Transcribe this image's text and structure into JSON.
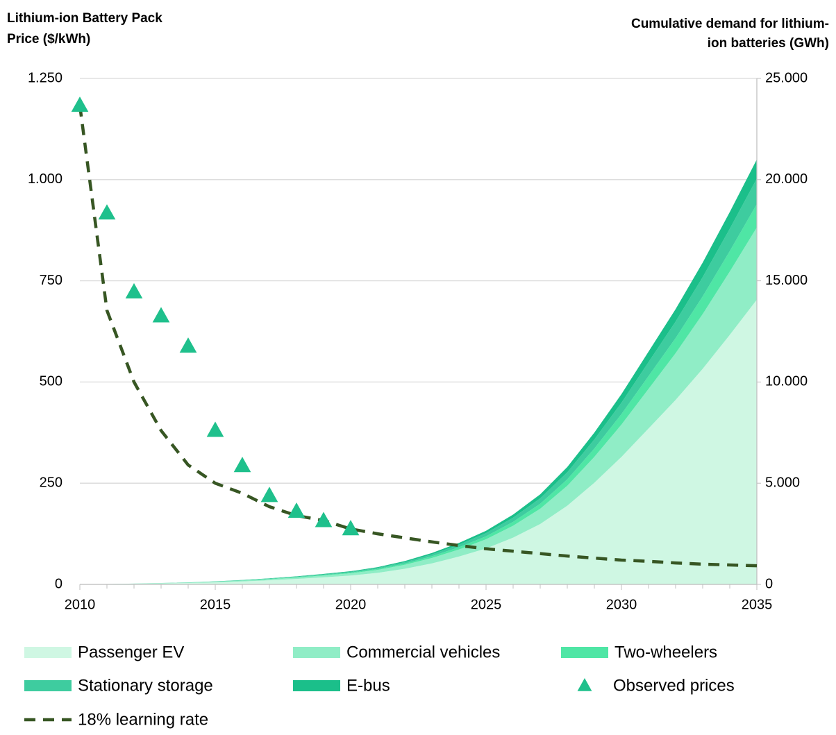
{
  "chart_data": {
    "type": "stacked-area-line",
    "ylabel": [
      "Lithium-ion Battery Pack",
      "Price ($/kWh)"
    ],
    "y2label": [
      "Cumulative demand for lithium-",
      "ion batteries (GWh)"
    ],
    "x": [
      2010,
      2011,
      2012,
      2013,
      2014,
      2015,
      2016,
      2017,
      2018,
      2019,
      2020,
      2021,
      2022,
      2023,
      2024,
      2025,
      2026,
      2027,
      2028,
      2029,
      2030,
      2031,
      2032,
      2033,
      2034,
      2035
    ],
    "xlim": [
      2010,
      2035
    ],
    "xticks": [
      2010,
      2015,
      2020,
      2025,
      2030,
      2035
    ],
    "ylim": [
      0,
      1250
    ],
    "yticks": [
      0,
      250,
      500,
      750,
      {
        "value": 1000,
        "label": "1.000"
      },
      {
        "value": 1250,
        "label": "1.250"
      }
    ],
    "y2lim": [
      0,
      25000
    ],
    "y2ticks": [
      0,
      {
        "value": 5000,
        "label": "5.000"
      },
      {
        "value": 10000,
        "label": "10.000"
      },
      {
        "value": 15000,
        "label": "15.000"
      },
      {
        "value": 20000,
        "label": "20.000"
      },
      {
        "value": 25000,
        "label": "25.000"
      }
    ],
    "grid": true,
    "legend": "bottom",
    "series": [
      {
        "name": "Passenger EV",
        "type": "area",
        "axis": "y2",
        "color": "#cff7e3",
        "values": [
          0,
          13,
          27,
          47,
          67,
          100,
          147,
          201,
          268,
          348,
          436,
          570,
          771,
          1039,
          1374,
          1776,
          2312,
          2982,
          3886,
          5025,
          6298,
          7705,
          9112,
          10653,
          12328,
          14070
        ]
      },
      {
        "name": "Commercial vehicles",
        "type": "area",
        "axis": "y2",
        "color": "#90edc6",
        "values": [
          0,
          3,
          7,
          12,
          17,
          26,
          37,
          51,
          68,
          88,
          111,
          145,
          196,
          264,
          349,
          451,
          587,
          757,
          986,
          1275,
          1598,
          1955,
          2312,
          2703,
          3128,
          3570
        ]
      },
      {
        "name": "Two-wheelers",
        "type": "area",
        "axis": "y2",
        "color": "#4fe6a5",
        "values": [
          0,
          1,
          2,
          4,
          6,
          8,
          12,
          17,
          22,
          29,
          36,
          47,
          63,
          85,
          113,
          146,
          190,
          245,
          319,
          413,
          517,
          633,
          748,
          875,
          1012,
          1155
        ]
      },
      {
        "name": "Stationary storage",
        "type": "area",
        "axis": "y2",
        "color": "#3ecc9f",
        "values": [
          0,
          1,
          2,
          4,
          6,
          9,
          13,
          18,
          24,
          31,
          39,
          51,
          69,
          93,
          123,
          159,
          207,
          267,
          348,
          450,
          564,
          690,
          816,
          954,
          1104,
          1260
        ]
      },
      {
        "name": "E-bus",
        "type": "area",
        "axis": "y2",
        "color": "#1bbf8a",
        "values": [
          0,
          1,
          2,
          3,
          4,
          7,
          10,
          14,
          18,
          23,
          29,
          38,
          52,
          70,
          92,
          119,
          155,
          200,
          261,
          338,
          423,
          518,
          612,
          716,
          828,
          945
        ]
      },
      {
        "name": "Observed prices",
        "type": "scatter",
        "axis": "y",
        "color": "#1fc08c",
        "values": [
          1183,
          917,
          722,
          663,
          588,
          380,
          293,
          219,
          180,
          157,
          137,
          null,
          null,
          null,
          null,
          null,
          null,
          null,
          null,
          null,
          null,
          null,
          null,
          null,
          null,
          null
        ]
      },
      {
        "name": "18% learning rate",
        "type": "line",
        "axis": "y",
        "color": "#375623",
        "values": [
          1183,
          677,
          500,
          380,
          295,
          250,
          225,
          192,
          170,
          158,
          137,
          125,
          115,
          105,
          96,
          88,
          82,
          76,
          70,
          65,
          60,
          57,
          53,
          50,
          48,
          46
        ]
      }
    ]
  }
}
